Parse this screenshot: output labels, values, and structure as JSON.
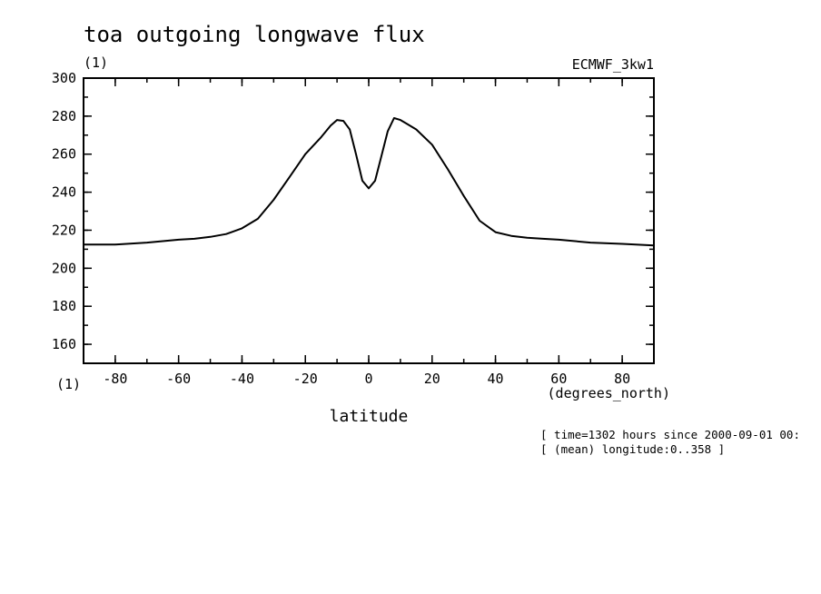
{
  "chart_data": {
    "type": "line",
    "title": "toa outgoing longwave flux",
    "ylabel": "(1)",
    "x_units_label": "(1)",
    "xlabel": "latitude",
    "x_units": "(degrees_north)",
    "dataset": "ECMWF_3kw1",
    "notes": [
      "[ time=1302 hours since 2000-09-01 00:",
      "[ (mean) longitude:0..358 ]"
    ],
    "xlim": [
      -90,
      90
    ],
    "ylim": [
      150,
      300
    ],
    "xticks": [
      -80,
      -60,
      -40,
      -20,
      0,
      20,
      40,
      60,
      80
    ],
    "xtick_labels": [
      "-80",
      "-60",
      "-40",
      "-20",
      "0",
      "20",
      "40",
      "60",
      "80"
    ],
    "yticks": [
      160,
      180,
      200,
      220,
      240,
      260,
      280,
      300
    ],
    "ytick_labels": [
      "160",
      "180",
      "200",
      "220",
      "240",
      "260",
      "280",
      "300"
    ],
    "grid": false,
    "series": [
      {
        "x": [
          -90,
          -80,
          -70,
          -60,
          -55,
          -50,
          -45,
          -40,
          -35,
          -30,
          -25,
          -20,
          -15,
          -12,
          -10,
          -8,
          -6,
          -4,
          -2,
          0,
          2,
          4,
          6,
          8,
          10,
          12,
          15,
          20,
          25,
          30,
          35,
          40,
          45,
          50,
          55,
          60,
          70,
          80,
          90
        ],
        "y": [
          212.5,
          212.5,
          213.5,
          215,
          215.5,
          216.5,
          218,
          221,
          226,
          236,
          248,
          260,
          269,
          275,
          278,
          277.5,
          273,
          260,
          246,
          242,
          246,
          259,
          272,
          279,
          278,
          276,
          273,
          265,
          252,
          238,
          225,
          219,
          217,
          216,
          215.5,
          215,
          213.5,
          212.8,
          212
        ]
      }
    ]
  }
}
